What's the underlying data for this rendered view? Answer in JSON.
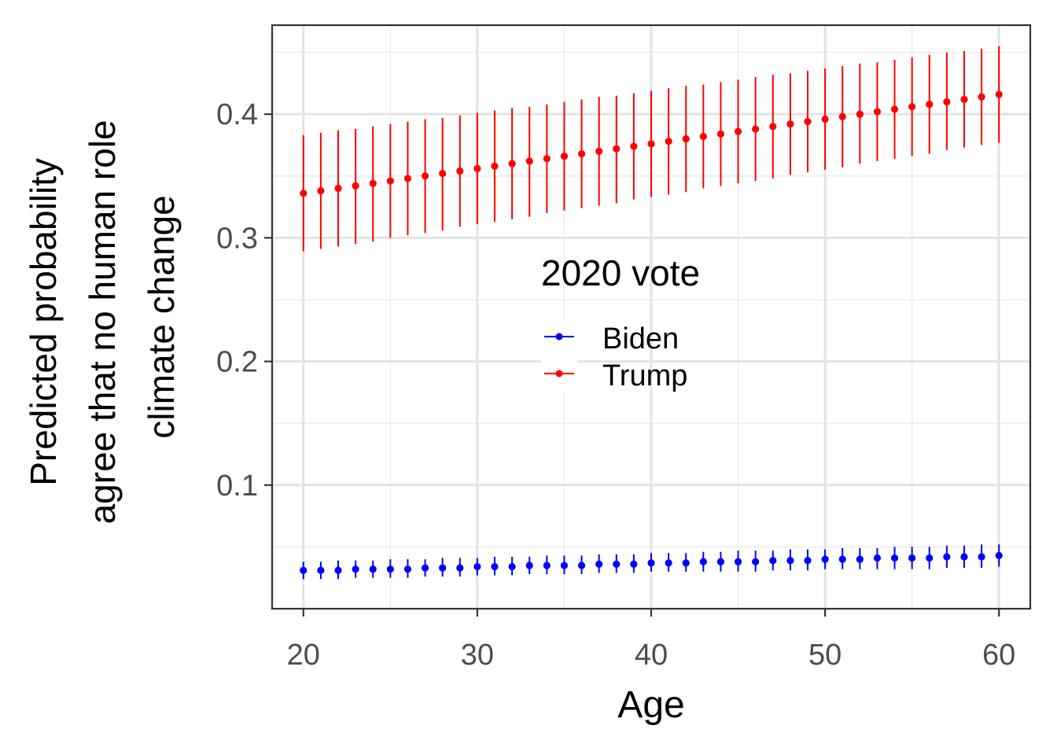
{
  "chart_data": {
    "type": "scatter",
    "x": [
      20,
      21,
      22,
      23,
      24,
      25,
      26,
      27,
      28,
      29,
      30,
      31,
      32,
      33,
      34,
      35,
      36,
      37,
      38,
      39,
      40,
      41,
      42,
      43,
      44,
      45,
      46,
      47,
      48,
      49,
      50,
      51,
      52,
      53,
      54,
      55,
      56,
      57,
      58,
      59,
      60
    ],
    "xlabel": "Age",
    "ylabel_lines": [
      "Predicted probability",
      "agree that no human role",
      "climate change"
    ],
    "xlim": [
      18.2,
      61.8
    ],
    "ylim": [
      0.0,
      0.472
    ],
    "x_ticks": [
      20,
      30,
      40,
      50,
      60
    ],
    "y_ticks": [
      0.1,
      0.2,
      0.3,
      0.4
    ],
    "y_tick_labels": [
      "0.1",
      "0.2",
      "0.3",
      "0.4"
    ],
    "grid": true,
    "error_bars": true,
    "legend": {
      "title": "2020 vote",
      "position": "center-right-inside"
    },
    "series": [
      {
        "name": "Biden",
        "color": "#0000ff",
        "values": [
          0.031,
          0.031,
          0.031,
          0.032,
          0.032,
          0.032,
          0.032,
          0.033,
          0.033,
          0.033,
          0.034,
          0.034,
          0.034,
          0.035,
          0.035,
          0.035,
          0.035,
          0.036,
          0.036,
          0.036,
          0.037,
          0.037,
          0.037,
          0.038,
          0.038,
          0.038,
          0.038,
          0.039,
          0.039,
          0.039,
          0.04,
          0.04,
          0.04,
          0.041,
          0.041,
          0.041,
          0.041,
          0.042,
          0.042,
          0.042,
          0.043
        ],
        "lower": [
          0.024,
          0.024,
          0.024,
          0.025,
          0.025,
          0.025,
          0.025,
          0.026,
          0.026,
          0.026,
          0.027,
          0.027,
          0.027,
          0.028,
          0.028,
          0.028,
          0.028,
          0.029,
          0.029,
          0.029,
          0.03,
          0.03,
          0.03,
          0.03,
          0.03,
          0.03,
          0.03,
          0.031,
          0.031,
          0.031,
          0.032,
          0.032,
          0.032,
          0.032,
          0.032,
          0.032,
          0.032,
          0.033,
          0.033,
          0.033,
          0.034
        ],
        "upper": [
          0.038,
          0.038,
          0.039,
          0.039,
          0.039,
          0.04,
          0.04,
          0.04,
          0.041,
          0.041,
          0.041,
          0.042,
          0.042,
          0.042,
          0.043,
          0.043,
          0.043,
          0.044,
          0.044,
          0.044,
          0.045,
          0.045,
          0.045,
          0.046,
          0.046,
          0.047,
          0.047,
          0.047,
          0.048,
          0.048,
          0.048,
          0.049,
          0.049,
          0.049,
          0.05,
          0.05,
          0.05,
          0.051,
          0.051,
          0.052,
          0.052
        ]
      },
      {
        "name": "Trump",
        "color": "#ff0000",
        "values": [
          0.336,
          0.338,
          0.34,
          0.342,
          0.344,
          0.346,
          0.348,
          0.35,
          0.352,
          0.354,
          0.356,
          0.358,
          0.36,
          0.362,
          0.364,
          0.366,
          0.368,
          0.37,
          0.372,
          0.374,
          0.376,
          0.378,
          0.38,
          0.382,
          0.384,
          0.386,
          0.388,
          0.39,
          0.392,
          0.394,
          0.396,
          0.398,
          0.4,
          0.402,
          0.404,
          0.406,
          0.408,
          0.41,
          0.412,
          0.414,
          0.416
        ],
        "lower": [
          0.289,
          0.291,
          0.293,
          0.295,
          0.297,
          0.3,
          0.302,
          0.304,
          0.306,
          0.309,
          0.311,
          0.313,
          0.315,
          0.317,
          0.32,
          0.322,
          0.324,
          0.326,
          0.328,
          0.331,
          0.333,
          0.335,
          0.337,
          0.34,
          0.342,
          0.344,
          0.346,
          0.348,
          0.351,
          0.353,
          0.355,
          0.357,
          0.36,
          0.362,
          0.364,
          0.366,
          0.368,
          0.371,
          0.373,
          0.375,
          0.377
        ],
        "upper": [
          0.383,
          0.385,
          0.387,
          0.388,
          0.39,
          0.392,
          0.394,
          0.396,
          0.397,
          0.399,
          0.401,
          0.403,
          0.405,
          0.406,
          0.408,
          0.41,
          0.412,
          0.414,
          0.415,
          0.417,
          0.419,
          0.421,
          0.423,
          0.424,
          0.426,
          0.428,
          0.43,
          0.432,
          0.433,
          0.435,
          0.437,
          0.439,
          0.441,
          0.442,
          0.444,
          0.446,
          0.448,
          0.45,
          0.451,
          0.453,
          0.455
        ]
      }
    ]
  }
}
